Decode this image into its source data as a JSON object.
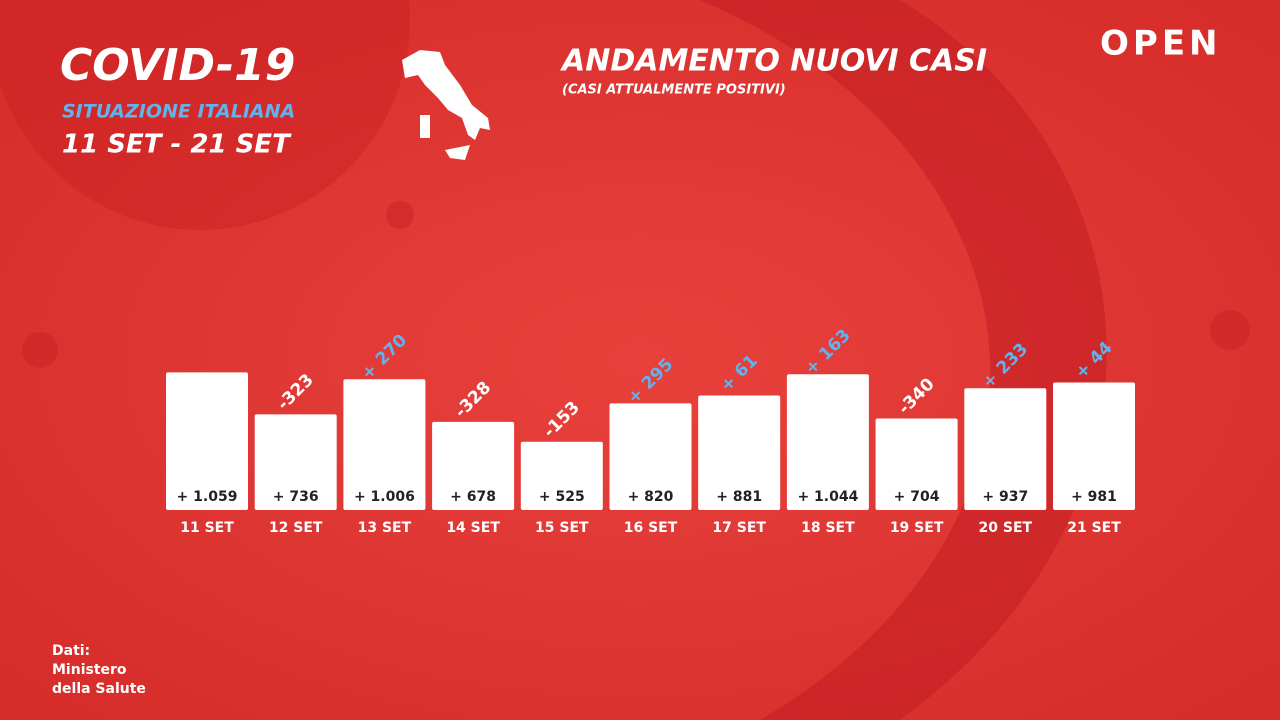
{
  "header": {
    "title": "COVID-19",
    "subtitle": "SITUAZIONE ITALIANA",
    "period": "11 SET - 21 SET",
    "logo": "OPEN"
  },
  "source": [
    "Dati:",
    "Ministero",
    "della Salute"
  ],
  "chart_data": {
    "type": "bar",
    "title": "ANDAMENTO NUOVI CASI",
    "subtitle": "(CASI ATTUALMENTE POSITIVI)",
    "categories": [
      "11 SET",
      "12 SET",
      "13 SET",
      "14 SET",
      "15 SET",
      "16 SET",
      "17 SET",
      "18 SET",
      "19 SET",
      "20 SET",
      "21 SET"
    ],
    "values": [
      1059,
      736,
      1006,
      678,
      525,
      820,
      881,
      1044,
      704,
      937,
      981
    ],
    "value_labels": [
      "+ 1.059",
      "+ 736",
      "+ 1.006",
      "+ 678",
      "+ 525",
      "+ 820",
      "+ 881",
      "+ 1.044",
      "+ 704",
      "+ 937",
      "+ 981"
    ],
    "color": "#ffffff",
    "changes": [
      null,
      -323,
      270,
      -328,
      -153,
      295,
      61,
      163,
      -340,
      233,
      44
    ],
    "change_labels": [
      null,
      "-323",
      "+ 270",
      "-328",
      "-153",
      "+ 295",
      "+ 61",
      "+ 163",
      "-340",
      "+ 233",
      "+ 44"
    ],
    "increase_color": "#5fb4ee",
    "decrease_color": "#ffffff"
  }
}
